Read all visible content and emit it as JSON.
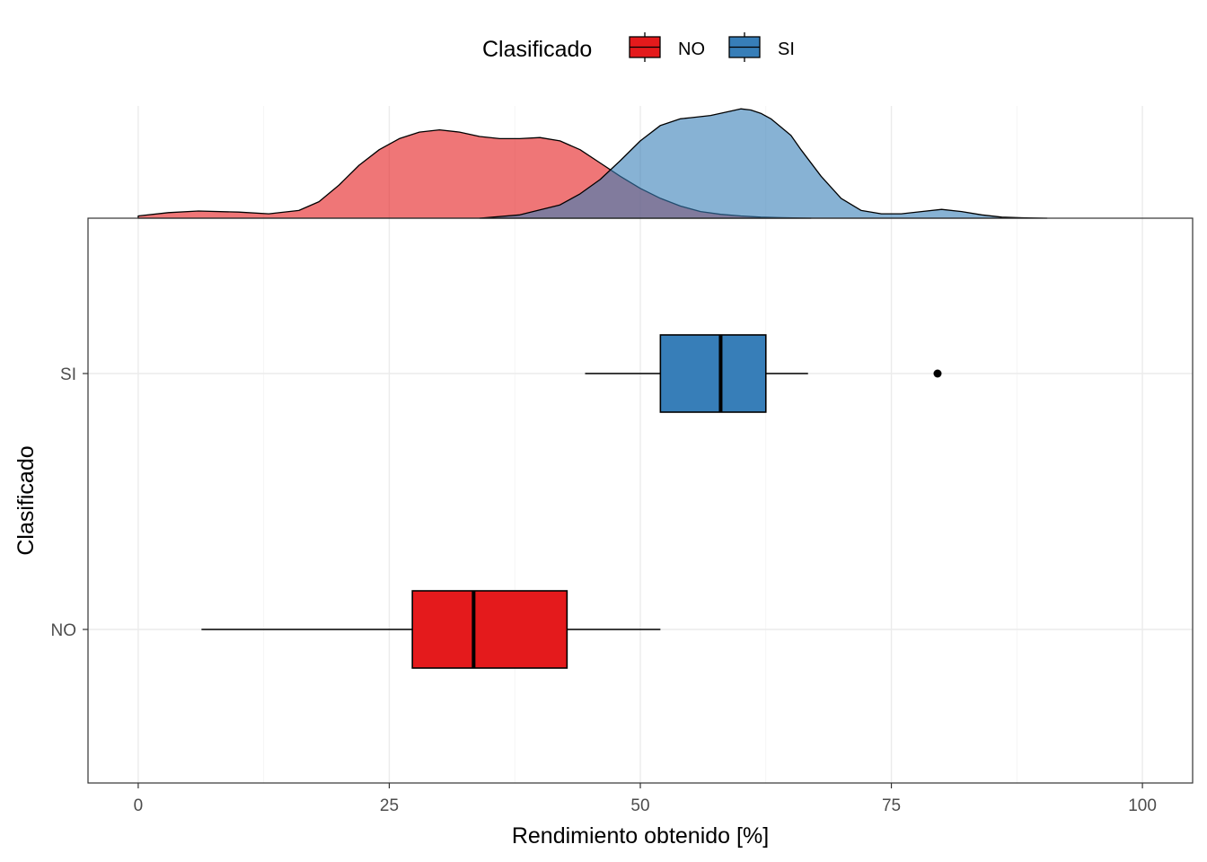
{
  "chart_data": {
    "type": "boxplot",
    "orientation": "horizontal",
    "title": "",
    "xlabel": "Rendimiento obtenido [%]",
    "ylabel": "Clasificado",
    "xlim": [
      -5,
      105
    ],
    "xticks": [
      0,
      25,
      50,
      75,
      100
    ],
    "xtick_labels": [
      "0",
      "25",
      "50",
      "75",
      "100"
    ],
    "categories": [
      "NO",
      "SI"
    ],
    "grid": true,
    "legend": {
      "title": "Clasificado",
      "position": "top",
      "entries": [
        {
          "label": "NO",
          "color": "#E41A1C"
        },
        {
          "label": "SI",
          "color": "#377EB8"
        }
      ]
    },
    "series": [
      {
        "name": "NO",
        "color": "#E41A1C",
        "box": {
          "whisker_low": 6.3,
          "q1": 27.3,
          "median": 33.4,
          "q3": 42.7,
          "whisker_high": 52.0
        },
        "outliers": [],
        "density": {
          "x": [
            0,
            3,
            6,
            10,
            13,
            16,
            18,
            20,
            22,
            24,
            26,
            28,
            30,
            32,
            34,
            36,
            38,
            40,
            42,
            44,
            46,
            48,
            50,
            52,
            54,
            56,
            58,
            60,
            62,
            64,
            67
          ],
          "y": [
            0.02,
            0.05,
            0.065,
            0.055,
            0.04,
            0.07,
            0.15,
            0.3,
            0.48,
            0.62,
            0.72,
            0.78,
            0.8,
            0.78,
            0.74,
            0.72,
            0.72,
            0.73,
            0.7,
            0.62,
            0.5,
            0.38,
            0.27,
            0.18,
            0.11,
            0.06,
            0.035,
            0.02,
            0.01,
            0.005,
            0.0
          ]
        }
      },
      {
        "name": "SI",
        "color": "#377EB8",
        "box": {
          "whisker_low": 44.5,
          "q1": 52.0,
          "median": 58.0,
          "q3": 62.5,
          "whisker_high": 66.7
        },
        "outliers": [
          79.6
        ],
        "density": {
          "x": [
            34,
            38,
            42,
            44,
            46,
            48,
            50,
            52,
            54,
            55,
            57,
            59,
            60,
            61,
            62,
            63,
            65,
            66,
            68,
            70,
            72,
            74,
            76,
            78,
            80,
            82,
            84,
            86,
            88,
            90.5
          ],
          "y": [
            0.0,
            0.03,
            0.12,
            0.22,
            0.35,
            0.52,
            0.7,
            0.84,
            0.9,
            0.91,
            0.93,
            0.97,
            0.99,
            0.98,
            0.95,
            0.9,
            0.75,
            0.62,
            0.38,
            0.18,
            0.07,
            0.04,
            0.04,
            0.06,
            0.08,
            0.06,
            0.03,
            0.01,
            0.004,
            0.0
          ]
        }
      }
    ]
  }
}
